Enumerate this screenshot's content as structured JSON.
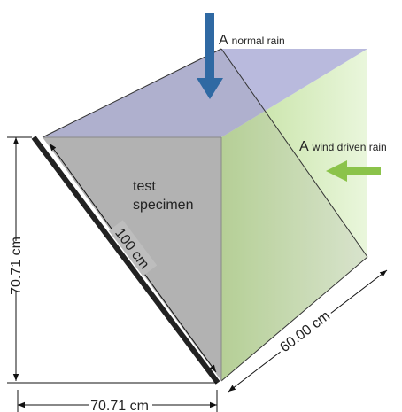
{
  "labels": {
    "normal_rain": {
      "letter": "A",
      "text": "normal rain"
    },
    "wind_driven_rain": {
      "letter": "A",
      "text": "wind driven rain"
    },
    "specimen": {
      "line1": "test",
      "line2": "specimen"
    },
    "diagonal": "100 cm",
    "height": "70.71 cm",
    "width": "70.71 cm",
    "depth": "60.00 cm"
  }
}
